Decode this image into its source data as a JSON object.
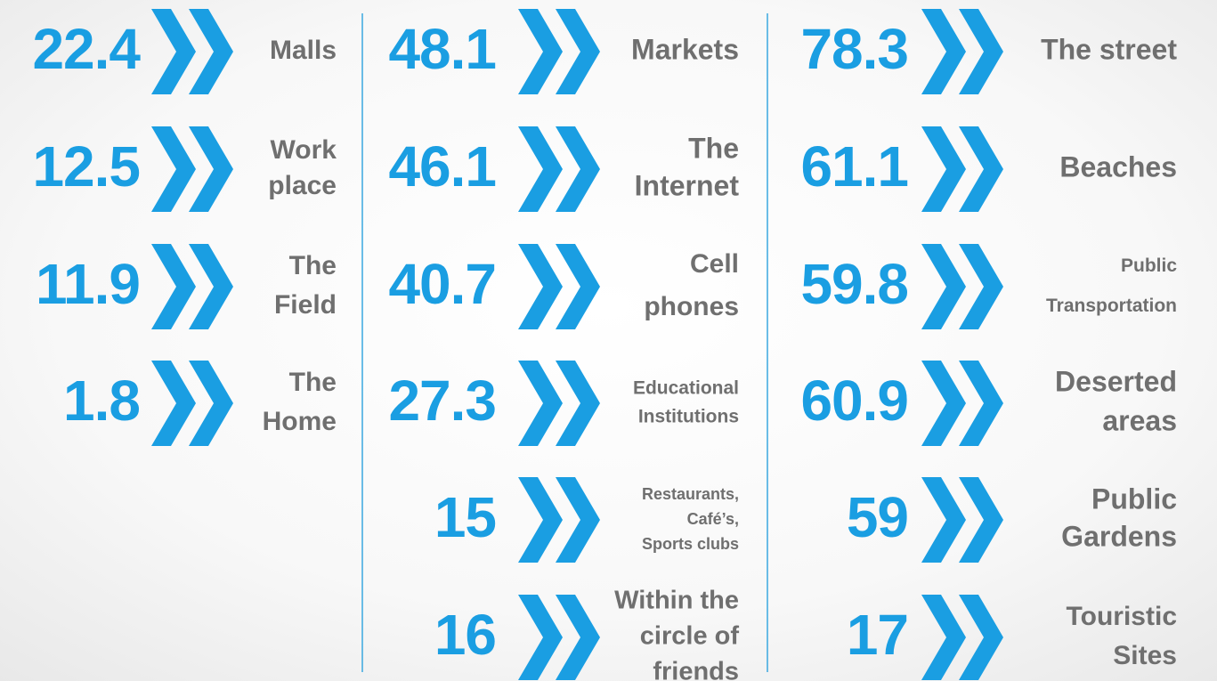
{
  "columns": [
    {
      "items": [
        {
          "value": 22.4,
          "label": [
            "Malls"
          ]
        },
        {
          "value": 12.5,
          "label": [
            "Work",
            "place"
          ]
        },
        {
          "value": 11.9,
          "label": [
            "The",
            "Field"
          ]
        },
        {
          "value": 1.8,
          "label": [
            "The",
            "Home"
          ]
        }
      ]
    },
    {
      "items": [
        {
          "value": 48.1,
          "label": [
            "Markets"
          ]
        },
        {
          "value": 46.1,
          "label": [
            "The",
            "Internet"
          ]
        },
        {
          "value": 40.7,
          "label": [
            "Cell",
            "phones"
          ]
        },
        {
          "value": 27.3,
          "label": [
            "Educational",
            "Institutions"
          ]
        },
        {
          "value": 15,
          "label": [
            "Restaurants,",
            "Café’s,",
            "Sports clubs"
          ]
        },
        {
          "value": 16,
          "label": [
            "Within the",
            "circle of",
            "friends"
          ]
        }
      ]
    },
    {
      "items": [
        {
          "value": 78.3,
          "label": [
            "The street"
          ]
        },
        {
          "value": 61.1,
          "label": [
            "Beaches"
          ]
        },
        {
          "value": 59.8,
          "label": [
            "Public",
            "Transportation"
          ]
        },
        {
          "value": 60.9,
          "label": [
            "Deserted",
            "areas"
          ]
        },
        {
          "value": 59,
          "label": [
            "Public",
            "Gardens"
          ]
        },
        {
          "value": 17,
          "label": [
            "Touristic",
            "Sites"
          ]
        }
      ]
    }
  ]
}
